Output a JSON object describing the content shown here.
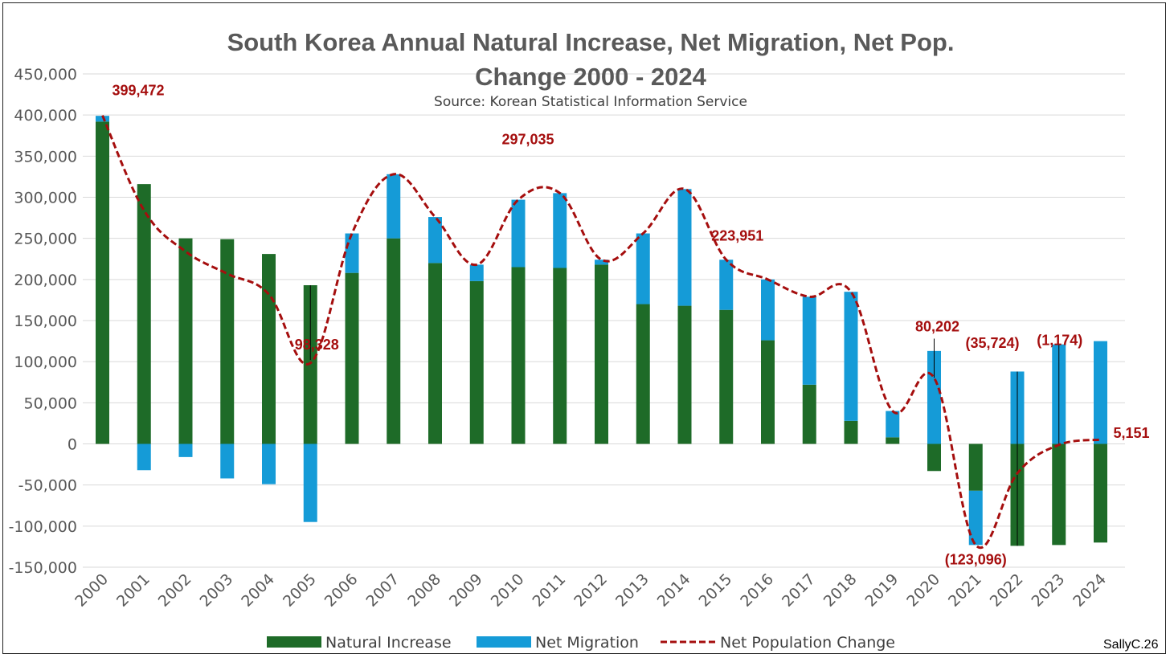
{
  "chart_data": {
    "type": "bar",
    "title_line1": "South Korea Annual Natural Increase, Net Migration, Net Pop.",
    "title_line2": "Change 2000 - 2024",
    "subtitle": "Source: Korean Statistical Information Service",
    "credit": "SallyC.26",
    "categories": [
      "2000",
      "2001",
      "2002",
      "2003",
      "2004",
      "2005",
      "2006",
      "2007",
      "2008",
      "2009",
      "2010",
      "2011",
      "2012",
      "2013",
      "2014",
      "2015",
      "2016",
      "2017",
      "2018",
      "2019",
      "2020",
      "2021",
      "2022",
      "2023",
      "2024"
    ],
    "ylim": [
      -150000,
      450000
    ],
    "yticks": [
      -150000,
      -100000,
      -50000,
      0,
      50000,
      100000,
      150000,
      200000,
      250000,
      300000,
      350000,
      400000,
      450000
    ],
    "ytick_labels": [
      "-150,000",
      "-100,000",
      "-50,000",
      "0",
      "50,000",
      "100,000",
      "150,000",
      "200,000",
      "250,000",
      "300,000",
      "350,000",
      "400,000",
      "450,000"
    ],
    "grid": true,
    "legend_position": "bottom",
    "series": [
      {
        "name": "Natural Increase",
        "type": "bar",
        "color": "#1e6b28",
        "values": [
          392000,
          316000,
          250000,
          249000,
          231000,
          193000,
          208000,
          250000,
          220000,
          198000,
          215000,
          214000,
          218000,
          170000,
          168000,
          163000,
          126000,
          72000,
          28000,
          8000,
          -33000,
          -57000,
          -124000,
          -123000,
          -120000
        ]
      },
      {
        "name": "Net Migration",
        "type": "bar",
        "color": "#159bd7",
        "values": [
          7000,
          -32000,
          -16000,
          -42000,
          -49000,
          -95000,
          48000,
          78000,
          56000,
          20000,
          82000,
          91000,
          6000,
          86000,
          142000,
          61000,
          74000,
          107000,
          157000,
          32000,
          113000,
          -66000,
          88000,
          121000,
          125000
        ]
      },
      {
        "name": "Net Population Change",
        "type": "line",
        "color": "#a50e0e",
        "values": [
          399472,
          284000,
          234000,
          207000,
          182000,
          98328,
          256000,
          328000,
          276000,
          218000,
          297035,
          305000,
          224000,
          256000,
          310000,
          223951,
          200000,
          179000,
          185000,
          40000,
          80202,
          -123096,
          -35724,
          -1174,
          5151
        ]
      }
    ],
    "annotations": [
      {
        "label": "399,472",
        "index": 0
      },
      {
        "label": "98,328",
        "index": 5
      },
      {
        "label": "297,035",
        "index": 10
      },
      {
        "label": "223,951",
        "index": 15
      },
      {
        "label": "80,202",
        "index": 20
      },
      {
        "label": "(123,096)",
        "index": 21
      },
      {
        "label": "(35,724)",
        "index": 22
      },
      {
        "label": "(1,174)",
        "index": 23
      },
      {
        "label": "5,151",
        "index": 24
      }
    ]
  }
}
